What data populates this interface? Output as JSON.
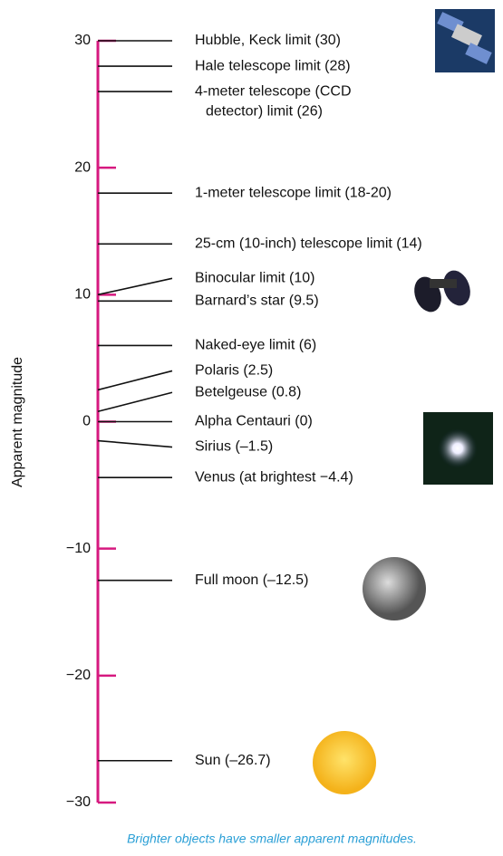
{
  "chart_data": {
    "type": "scale",
    "ylabel": "Apparent magnitude",
    "caption": "Brighter objects have smaller apparent magnitudes.",
    "ylim": [
      -30,
      30
    ],
    "yticks": [
      {
        "value": -30,
        "label": "−30"
      },
      {
        "value": -20,
        "label": "−20"
      },
      {
        "value": -10,
        "label": "−10"
      },
      0,
      10,
      20,
      30
    ],
    "categories": [
      "Hubble, Keck limit (30)",
      "Hale telescope limit (28)",
      [
        "4-meter telescope (CCD",
        "detector) limit (26)"
      ],
      "1-meter telescope limit (18-20)",
      "25-cm (10-inch) telescope limit (14)",
      "Binocular limit (10)",
      "Barnard’s star (9.5)",
      "Naked-eye limit (6)",
      "Polaris (2.5)",
      "Betelgeuse (0.8)",
      "Alpha Centauri (0)",
      "Sirius (–1.5)",
      "Venus (at brightest −4.4)",
      "Full moon (–12.5)",
      "Sun (–26.7)"
    ],
    "values": [
      30,
      28,
      26,
      18,
      14,
      10,
      9.5,
      6,
      2.5,
      0.8,
      0,
      -1.5,
      -4.4,
      -12.5,
      -26.7
    ],
    "axis_color": "#d6197f",
    "line_color": "#111111",
    "caption_color": "#2a9fd6"
  }
}
